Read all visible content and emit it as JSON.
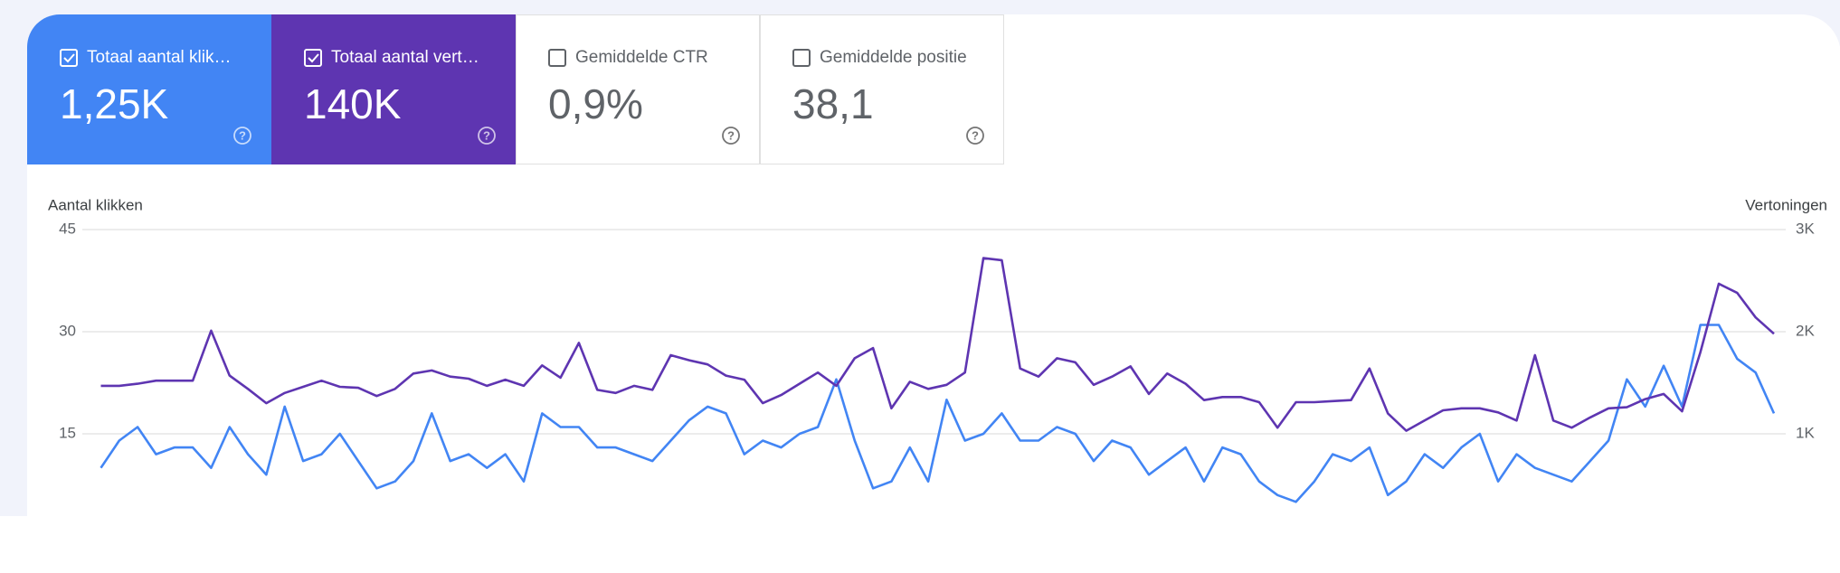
{
  "cards": [
    {
      "label": "Totaal aantal klik…",
      "value": "1,25K",
      "checked": true,
      "color": "#4285f4"
    },
    {
      "label": "Totaal aantal vert…",
      "value": "140K",
      "checked": true,
      "color": "#5e35b1"
    },
    {
      "label": "Gemiddelde CTR",
      "value": "0,9%",
      "checked": false
    },
    {
      "label": "Gemiddelde positie",
      "value": "38,1",
      "checked": false
    }
  ],
  "chart_data": {
    "type": "line",
    "y_label": "Aantal klikken",
    "y2_label": "Vertoningen",
    "ylim": [
      0,
      45
    ],
    "yticks": [
      15,
      30,
      45
    ],
    "y2lim": [
      0,
      3000
    ],
    "y2ticks": [
      {
        "value": 1000,
        "label": "1K"
      },
      {
        "value": 2000,
        "label": "2K"
      },
      {
        "value": 3000,
        "label": "3K"
      }
    ],
    "grid": true,
    "series": [
      {
        "name": "Totaal aantal klikken",
        "color": "#4285f4",
        "values": [
          10,
          14,
          16,
          12,
          13,
          13,
          10,
          16,
          12,
          9,
          19,
          11,
          12,
          15,
          11,
          7,
          8,
          11,
          18,
          11,
          12,
          10,
          12,
          8,
          18,
          16,
          16,
          13,
          13,
          12,
          11,
          14,
          17,
          19,
          18,
          12,
          14,
          13,
          15,
          16,
          23,
          14,
          7,
          8,
          13,
          8,
          20,
          14,
          15,
          18,
          14,
          14,
          16,
          15,
          11,
          14,
          13,
          9,
          11,
          13,
          8,
          13,
          12,
          8,
          6,
          5,
          8,
          12,
          11,
          13,
          6,
          8,
          12,
          10,
          13,
          15,
          8,
          12,
          10,
          9,
          8,
          11,
          14,
          23,
          19,
          25,
          19,
          31,
          31,
          26,
          24,
          18
        ]
      },
      {
        "name": "Totaal aantal vertoningen",
        "color": "#5e35b1",
        "axis": "y2",
        "values": [
          1470,
          1470,
          1490,
          1520,
          1520,
          1520,
          2010,
          1570,
          1440,
          1300,
          1400,
          1460,
          1520,
          1460,
          1450,
          1370,
          1440,
          1590,
          1620,
          1560,
          1540,
          1470,
          1530,
          1470,
          1670,
          1550,
          1890,
          1430,
          1400,
          1470,
          1430,
          1770,
          1720,
          1680,
          1570,
          1530,
          1300,
          1380,
          1490,
          1600,
          1470,
          1740,
          1840,
          1250,
          1510,
          1440,
          1480,
          1600,
          2720,
          2700,
          1640,
          1560,
          1740,
          1700,
          1480,
          1560,
          1660,
          1390,
          1590,
          1490,
          1330,
          1360,
          1360,
          1310,
          1060,
          1310,
          1310,
          1320,
          1330,
          1640,
          1200,
          1030,
          1130,
          1230,
          1250,
          1250,
          1210,
          1130,
          1770,
          1130,
          1060,
          1160,
          1250,
          1260,
          1340,
          1390,
          1220,
          1800,
          2470,
          2380,
          2140,
          1980
        ]
      }
    ]
  }
}
